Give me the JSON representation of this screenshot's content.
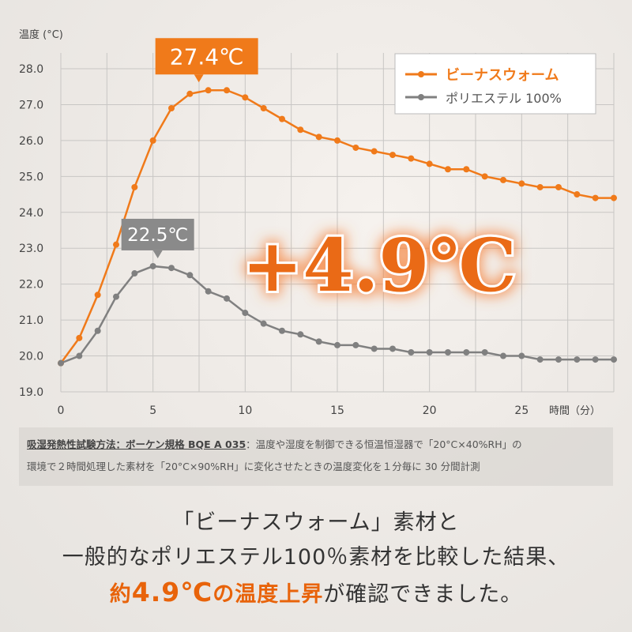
{
  "chart_data": {
    "type": "line",
    "ylabel": "温度 (°C)",
    "xlabel": "時間（分）",
    "ylim": [
      19.0,
      28.0
    ],
    "xlim": [
      0,
      30
    ],
    "yticks": [
      "19.0",
      "20.0",
      "21.0",
      "22.0",
      "23.0",
      "24.0",
      "25.0",
      "26.0",
      "27.0",
      "28.0"
    ],
    "xticks": [
      "0",
      "5",
      "10",
      "15",
      "20",
      "25"
    ],
    "grid": true,
    "legend_position": "top-right",
    "x": [
      0,
      1,
      2,
      3,
      4,
      5,
      6,
      7,
      8,
      9,
      10,
      11,
      12,
      13,
      14,
      15,
      16,
      17,
      18,
      19,
      20,
      21,
      22,
      23,
      24,
      25,
      26,
      27,
      28,
      29,
      30
    ],
    "series": [
      {
        "name": "ビーナスウォーム",
        "color": "#f07a1a",
        "values": [
          19.8,
          20.5,
          21.7,
          23.1,
          24.7,
          26.0,
          26.9,
          27.3,
          27.4,
          27.4,
          27.2,
          26.9,
          26.6,
          26.3,
          26.1,
          26.0,
          25.8,
          25.7,
          25.6,
          25.5,
          25.35,
          25.2,
          25.2,
          25.0,
          24.9,
          24.8,
          24.7,
          24.7,
          24.5,
          24.4,
          24.4
        ]
      },
      {
        "name": "ポリエステル 100%",
        "color": "#808080",
        "values": [
          19.8,
          20.0,
          20.7,
          21.65,
          22.3,
          22.5,
          22.45,
          22.25,
          21.8,
          21.6,
          21.2,
          20.9,
          20.7,
          20.6,
          20.4,
          20.3,
          20.3,
          20.2,
          20.2,
          20.1,
          20.1,
          20.1,
          20.1,
          20.1,
          20.0,
          20.0,
          19.9,
          19.9,
          19.9,
          19.9,
          19.9
        ]
      }
    ],
    "annotations": [
      {
        "text": "27.4℃",
        "x": 8,
        "y": 27.4,
        "color": "#f07a1a"
      },
      {
        "text": "22.5℃",
        "x": 5,
        "y": 22.5,
        "color": "#8a8a8a"
      }
    ],
    "callout": "+4.9℃"
  },
  "note": {
    "method": "吸湿発熱性試験方法：ボーケン規格 BQE A 035",
    "line1": "：温度や湿度を制御できる恒温恒湿器で「20°C×40%RH」の",
    "line2": "環境で２時間処理した素材を「20°C×90%RH」に変化させたときの温度変化を１分毎に 30 分間計測"
  },
  "summary": {
    "line1": "「ビーナスウォーム」素材と",
    "line2": "一般的なポリエステル100％素材を比較した結果、",
    "line3_a": "約",
    "line3_b": "4.9℃",
    "line3_c": "の温度上昇",
    "line3_d": "が確認できました。"
  }
}
